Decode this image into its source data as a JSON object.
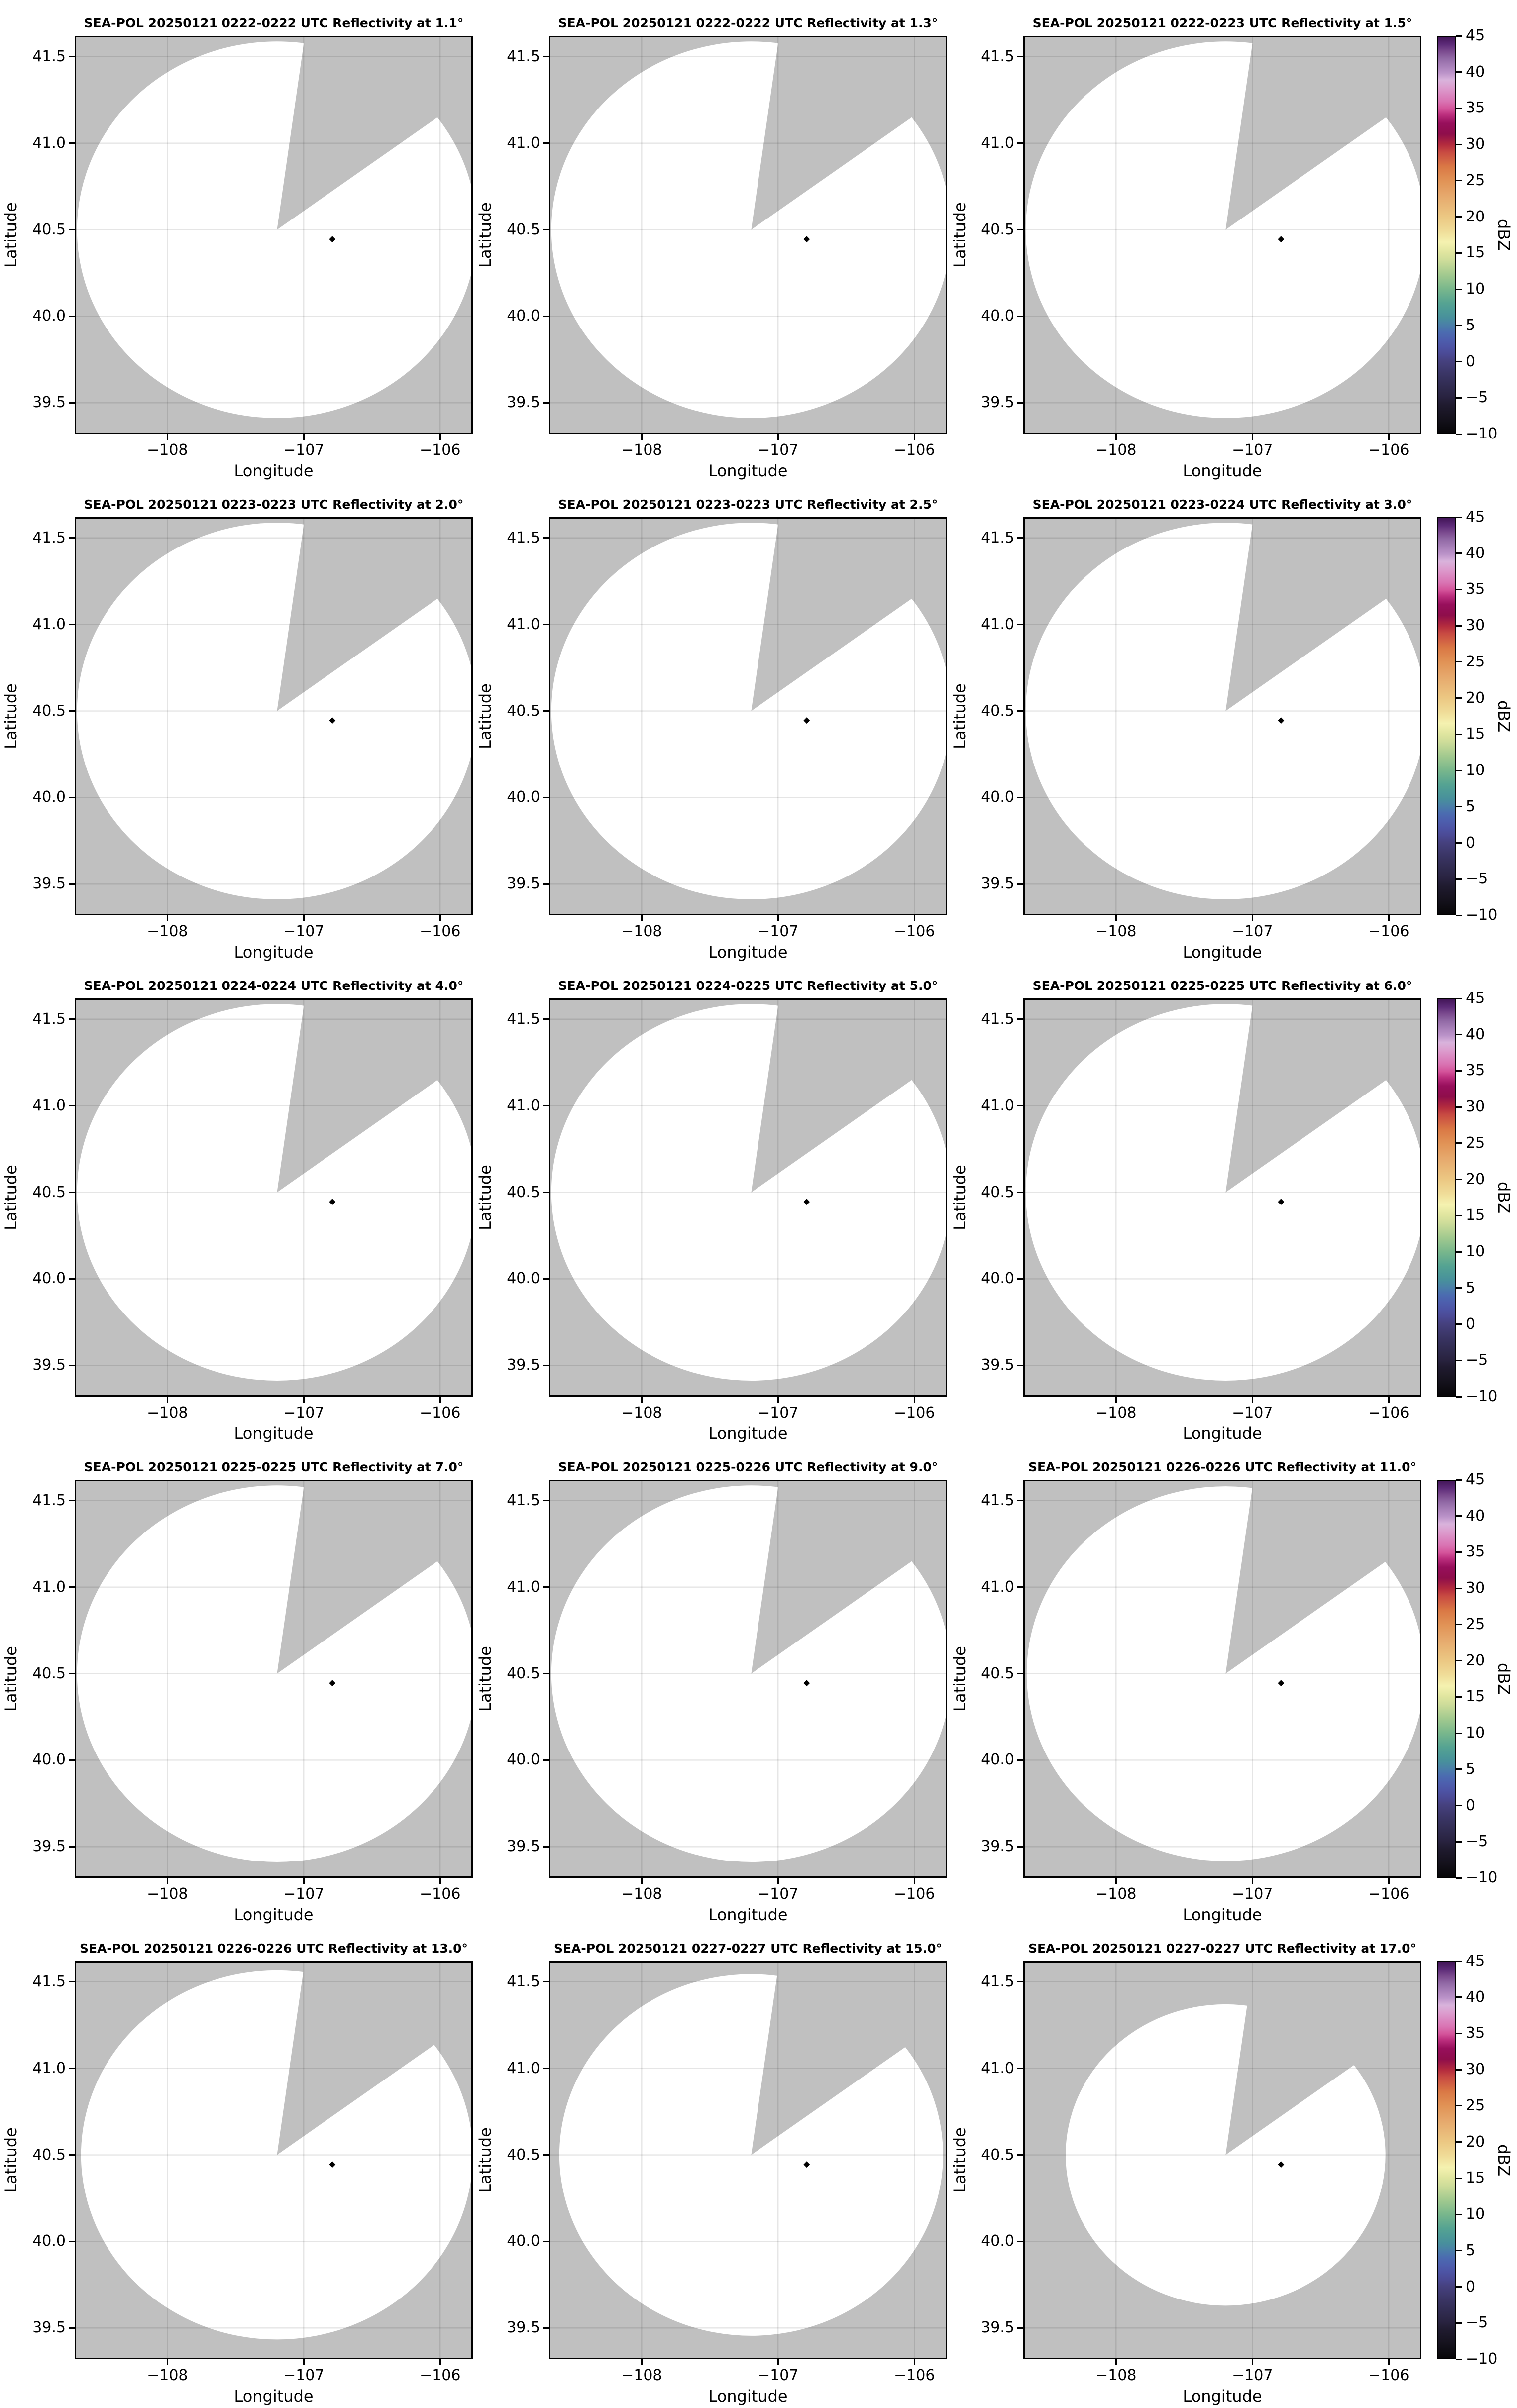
{
  "figure": {
    "axis": {
      "xlabel": "Longitude",
      "ylabel": "Latitude",
      "xtick_labels": [
        "−108",
        "−107",
        "−106"
      ],
      "ytick_labels": [
        "41.5",
        "41.0",
        "40.5",
        "40.0",
        "39.5"
      ]
    },
    "colorbar": {
      "label": "dBZ",
      "tick_labels": [
        "45",
        "40",
        "35",
        "30",
        "25",
        "20",
        "15",
        "10",
        "5",
        "0",
        "−5",
        "−10"
      ],
      "tick_values": [
        45,
        40,
        35,
        30,
        25,
        20,
        15,
        10,
        5,
        0,
        -5,
        -10
      ]
    },
    "panels": [
      {
        "title": "SEA-POL 20250121 0222-0222 UTC Reflectivity at 1.1°",
        "radius_factor": 1.0
      },
      {
        "title": "SEA-POL 20250121 0222-0222 UTC Reflectivity at 1.3°",
        "radius_factor": 1.0
      },
      {
        "title": "SEA-POL 20250121 0222-0223 UTC Reflectivity at 1.5°",
        "radius_factor": 1.0
      },
      {
        "title": "SEA-POL 20250121 0223-0223 UTC Reflectivity at 2.0°",
        "radius_factor": 1.0
      },
      {
        "title": "SEA-POL 20250121 0223-0223 UTC Reflectivity at 2.5°",
        "radius_factor": 1.0
      },
      {
        "title": "SEA-POL 20250121 0223-0224 UTC Reflectivity at 3.0°",
        "radius_factor": 1.0
      },
      {
        "title": "SEA-POL 20250121 0224-0224 UTC Reflectivity at 4.0°",
        "radius_factor": 1.0
      },
      {
        "title": "SEA-POL 20250121 0224-0225 UTC Reflectivity at 5.0°",
        "radius_factor": 1.0
      },
      {
        "title": "SEA-POL 20250121 0225-0225 UTC Reflectivity at 6.0°",
        "radius_factor": 1.0
      },
      {
        "title": "SEA-POL 20250121 0225-0225 UTC Reflectivity at 7.0°",
        "radius_factor": 1.0
      },
      {
        "title": "SEA-POL 20250121 0225-0226 UTC Reflectivity at 9.0°",
        "radius_factor": 1.0
      },
      {
        "title": "SEA-POL 20250121 0226-0226 UTC Reflectivity at 11.0°",
        "radius_factor": 0.995
      },
      {
        "title": "SEA-POL 20250121 0226-0226 UTC Reflectivity at 13.0°",
        "radius_factor": 0.98
      },
      {
        "title": "SEA-POL 20250121 0227-0227 UTC Reflectivity at 15.0°",
        "radius_factor": 0.96
      },
      {
        "title": "SEA-POL 20250121 0227-0227 UTC Reflectivity at 17.0°",
        "radius_factor": 0.8
      }
    ],
    "colors": {
      "no_data_background": "#c0c0c0",
      "scan_area": "#ffffff",
      "gridline": "rgba(0,0,0,0.10)",
      "marker": "#000000",
      "frame": "#000000",
      "colormap_stops": [
        {
          "v": -10,
          "c": "#070608"
        },
        {
          "v": -8,
          "c": "#15121d"
        },
        {
          "v": -6,
          "c": "#201b30"
        },
        {
          "v": -5,
          "c": "#292340"
        },
        {
          "v": -4,
          "c": "#2e294b"
        },
        {
          "v": -2,
          "c": "#393463"
        },
        {
          "v": 0,
          "c": "#46417f"
        },
        {
          "v": 1,
          "c": "#4b4a96"
        },
        {
          "v": 2,
          "c": "#4d54a5"
        },
        {
          "v": 3,
          "c": "#4d5fae"
        },
        {
          "v": 4,
          "c": "#4b6cb0"
        },
        {
          "v": 5,
          "c": "#4a7fa8"
        },
        {
          "v": 6,
          "c": "#48909c"
        },
        {
          "v": 7,
          "c": "#4d9a97"
        },
        {
          "v": 8,
          "c": "#55a392"
        },
        {
          "v": 10,
          "c": "#79b78c"
        },
        {
          "v": 12,
          "c": "#a3ca8f"
        },
        {
          "v": 14,
          "c": "#cfdd9a"
        },
        {
          "v": 15,
          "c": "#dfe59f"
        },
        {
          "v": 16.5,
          "c": "#f5f2b0"
        },
        {
          "v": 18,
          "c": "#f0dd99"
        },
        {
          "v": 20,
          "c": "#ecc883"
        },
        {
          "v": 23,
          "c": "#e6a86c"
        },
        {
          "v": 25,
          "c": "#e19356"
        },
        {
          "v": 27,
          "c": "#da7845"
        },
        {
          "v": 29,
          "c": "#c84a42"
        },
        {
          "v": 30,
          "c": "#b42c3e"
        },
        {
          "v": 31.5,
          "c": "#8f0e4b"
        },
        {
          "v": 33,
          "c": "#970f5c"
        },
        {
          "v": 34.2,
          "c": "#bc2f7e"
        },
        {
          "v": 35,
          "c": "#d4539a"
        },
        {
          "v": 36,
          "c": "#d973b2"
        },
        {
          "v": 37,
          "c": "#db88c1"
        },
        {
          "v": 38,
          "c": "#dc9fcf"
        },
        {
          "v": 39,
          "c": "#d9b3dc"
        },
        {
          "v": 40,
          "c": "#bb93c9"
        },
        {
          "v": 41,
          "c": "#a77fb8"
        },
        {
          "v": 42,
          "c": "#926aa6"
        },
        {
          "v": 43,
          "c": "#7b4b8f"
        },
        {
          "v": 44,
          "c": "#5c2a77"
        },
        {
          "v": 45,
          "c": "#431659"
        }
      ]
    }
  },
  "chart_data": {
    "type": "heatmap",
    "title": "SEA-POL radar PPI reflectivity sweeps, 20250121 0222-0227 UTC",
    "layout": "5 rows x 3 columns of PPI map panels; one shared dBZ colorbar per row at right; grid on",
    "xlabel": "Longitude",
    "ylabel": "Latitude",
    "xlim": [
      -108.68,
      -105.76
    ],
    "ylim": [
      39.32,
      41.62
    ],
    "xticks": [
      -108,
      -107,
      -106
    ],
    "yticks": [
      41.5,
      41.0,
      40.5,
      40.0,
      39.5
    ],
    "colorbar": {
      "label": "dBZ",
      "min": -10,
      "max": 45,
      "ticks": [
        45,
        40,
        35,
        30,
        25,
        20,
        15,
        10,
        5,
        0,
        -5,
        -10
      ]
    },
    "radar_site": {
      "lon": -106.79,
      "lat": 40.445
    },
    "scan_center": {
      "lon": -107.2,
      "lat": 40.5
    },
    "scan_radius_deg": {
      "lon": 1.466,
      "lat": 1.088
    },
    "blocked_sector_azimuth_deg": [
      8.2,
      55
    ],
    "panels": [
      {
        "elevation_deg": 1.1,
        "time_utc": "0222-0222",
        "date": "20250121"
      },
      {
        "elevation_deg": 1.3,
        "time_utc": "0222-0222",
        "date": "20250121"
      },
      {
        "elevation_deg": 1.5,
        "time_utc": "0222-0223",
        "date": "20250121"
      },
      {
        "elevation_deg": 2.0,
        "time_utc": "0223-0223",
        "date": "20250121"
      },
      {
        "elevation_deg": 2.5,
        "time_utc": "0223-0223",
        "date": "20250121"
      },
      {
        "elevation_deg": 3.0,
        "time_utc": "0223-0224",
        "date": "20250121"
      },
      {
        "elevation_deg": 4.0,
        "time_utc": "0224-0224",
        "date": "20250121"
      },
      {
        "elevation_deg": 5.0,
        "time_utc": "0224-0225",
        "date": "20250121"
      },
      {
        "elevation_deg": 6.0,
        "time_utc": "0225-0225",
        "date": "20250121"
      },
      {
        "elevation_deg": 7.0,
        "time_utc": "0225-0225",
        "date": "20250121"
      },
      {
        "elevation_deg": 9.0,
        "time_utc": "0225-0226",
        "date": "20250121"
      },
      {
        "elevation_deg": 11.0,
        "time_utc": "0226-0226",
        "date": "20250121"
      },
      {
        "elevation_deg": 13.0,
        "time_utc": "0226-0226",
        "date": "20250121"
      },
      {
        "elevation_deg": 15.0,
        "time_utc": "0227-0227",
        "date": "20250121"
      },
      {
        "elevation_deg": 17.0,
        "time_utc": "0227-0227",
        "date": "20250121"
      }
    ],
    "values_note": "No reflectivity echoes above -10 dBZ are shown; the circular scan coverage area renders blank (white) over a gray no-data background, with a gray blocked/no-data wedge from the scan center toward the NNE, and a black diamond marking the radar site in every panel."
  }
}
